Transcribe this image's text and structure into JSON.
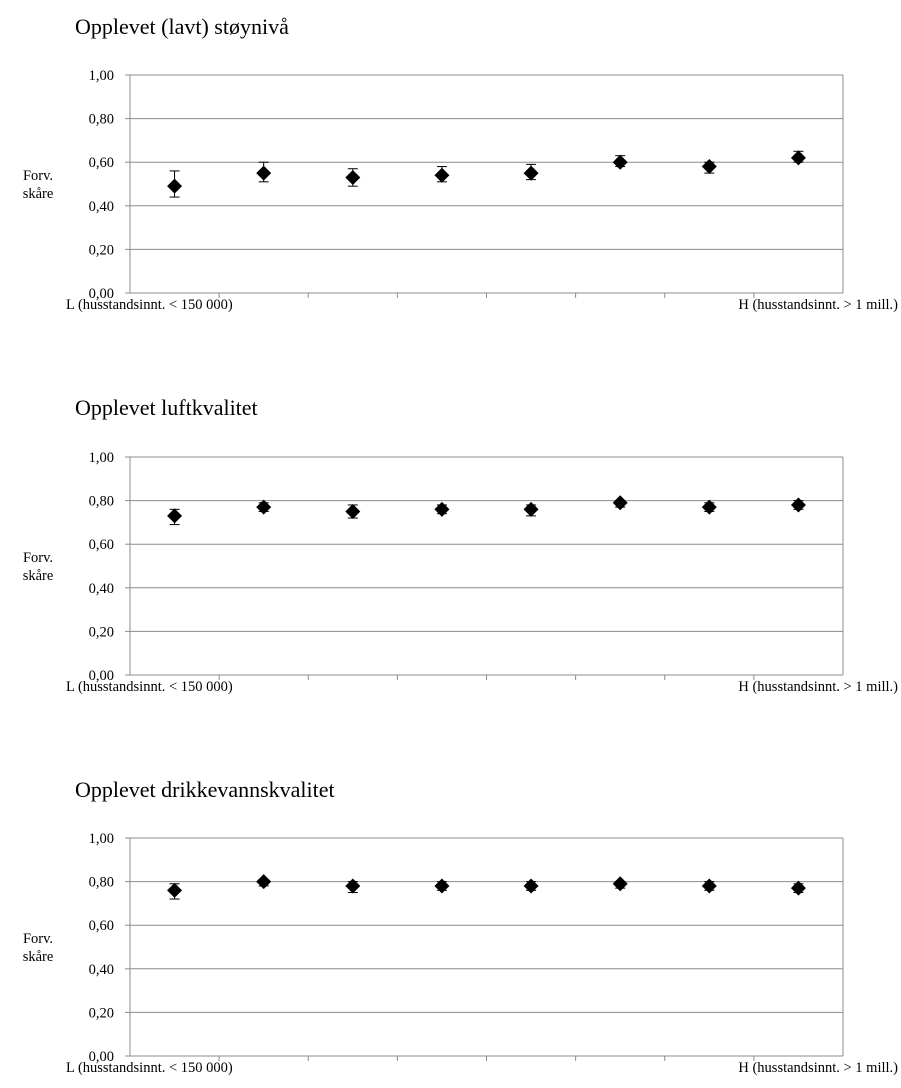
{
  "chart_data": [
    {
      "type": "scatter",
      "title": "Opplevet (lavt) støynivå",
      "ylabel": "Forv.\nskåre",
      "xlabel_left": "L (husstandsinnt. < 150 000)",
      "xlabel_right": "H (husstandsinnt. > 1 mill.)",
      "ylim": [
        0,
        1
      ],
      "yticks": [
        "0,00",
        "0,20",
        "0,40",
        "0,60",
        "0,80",
        "1,00"
      ],
      "grid": true,
      "x": [
        1,
        2,
        3,
        4,
        5,
        6,
        7,
        8
      ],
      "values": [
        0.49,
        0.55,
        0.53,
        0.54,
        0.55,
        0.6,
        0.58,
        0.62
      ],
      "error_low": [
        0.44,
        0.51,
        0.49,
        0.51,
        0.52,
        0.58,
        0.55,
        0.6
      ],
      "error_high": [
        0.56,
        0.6,
        0.57,
        0.58,
        0.59,
        0.63,
        0.6,
        0.65
      ]
    },
    {
      "type": "scatter",
      "title": "Opplevet luftkvalitet",
      "ylabel": "Forv.\nskåre",
      "xlabel_left": "L (husstandsinnt. < 150 000)",
      "xlabel_right": "H (husstandsinnt. > 1 mill.)",
      "ylim": [
        0,
        1
      ],
      "yticks": [
        "0,00",
        "0,20",
        "0,40",
        "0,60",
        "0,80",
        "1,00"
      ],
      "grid": true,
      "x": [
        1,
        2,
        3,
        4,
        5,
        6,
        7,
        8
      ],
      "values": [
        0.73,
        0.77,
        0.75,
        0.76,
        0.76,
        0.79,
        0.77,
        0.78
      ],
      "error_low": [
        0.69,
        0.75,
        0.72,
        0.74,
        0.73,
        0.77,
        0.75,
        0.76
      ],
      "error_high": [
        0.76,
        0.79,
        0.78,
        0.78,
        0.78,
        0.8,
        0.79,
        0.8
      ]
    },
    {
      "type": "scatter",
      "title": "Opplevet drikkevannskvalitet",
      "ylabel": "Forv.\nskåre",
      "xlabel_left": "L (husstandsinnt. < 150 000)",
      "xlabel_right": "H (husstandsinnt. > 1 mill.)",
      "ylim": [
        0,
        1
      ],
      "yticks": [
        "0,00",
        "0,20",
        "0,40",
        "0,60",
        "0,80",
        "1,00"
      ],
      "grid": true,
      "x": [
        1,
        2,
        3,
        4,
        5,
        6,
        7,
        8
      ],
      "values": [
        0.76,
        0.8,
        0.78,
        0.78,
        0.78,
        0.79,
        0.78,
        0.77
      ],
      "error_low": [
        0.72,
        0.78,
        0.75,
        0.76,
        0.76,
        0.77,
        0.76,
        0.75
      ],
      "error_high": [
        0.79,
        0.81,
        0.8,
        0.8,
        0.8,
        0.8,
        0.8,
        0.79
      ]
    }
  ]
}
